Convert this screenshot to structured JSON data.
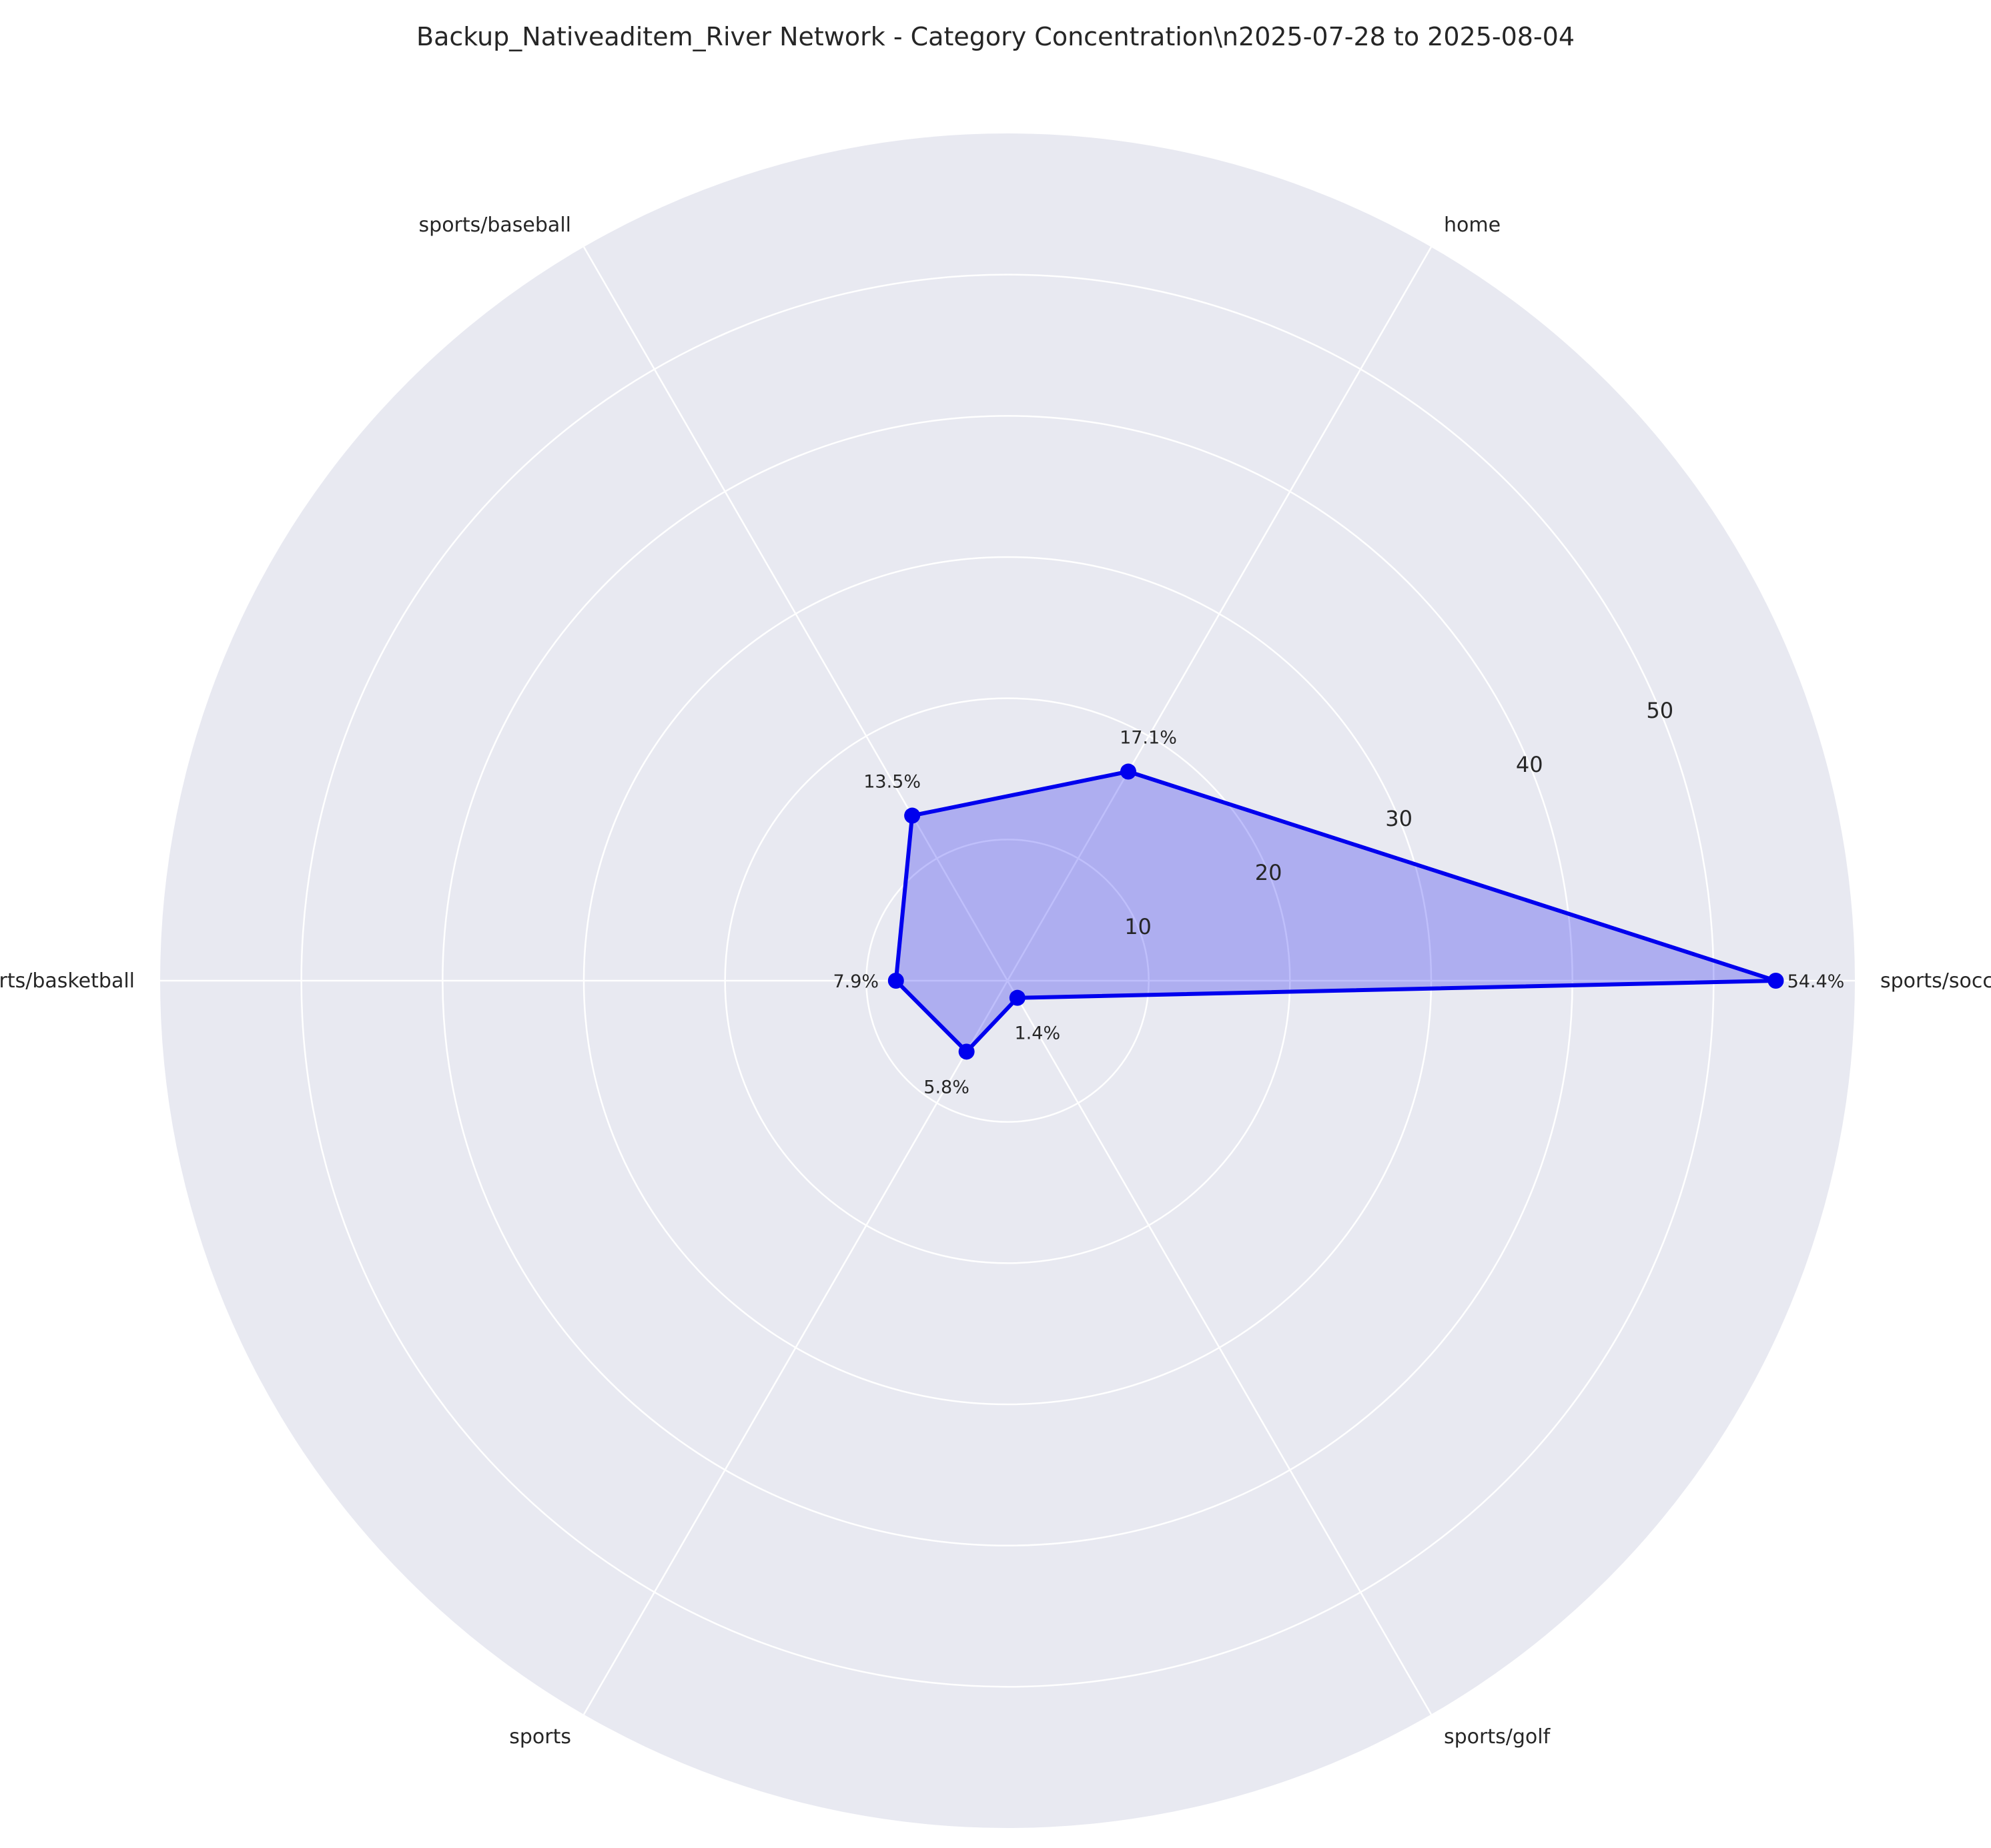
{
  "chart_data": {
    "type": "radar",
    "title": "Backup_Nativeaditem_River Network - Category Concentration\\n2025-07-28 to 2025-08-04",
    "categories": [
      "sports/soccer",
      "home",
      "sports/baseball",
      "sports/basketball",
      "sports",
      "sports/golf"
    ],
    "values": [
      54.4,
      17.1,
      13.5,
      7.9,
      5.8,
      1.4
    ],
    "value_labels": [
      "54.4%",
      "17.1%",
      "13.5%",
      "7.9%",
      "5.8%",
      "1.4%"
    ],
    "radial_ticks": [
      10,
      20,
      30,
      40,
      50
    ],
    "rlim": [
      0,
      60
    ],
    "grid": true,
    "colors": {
      "line": "#0000ee",
      "fill": "#0000ee",
      "plot_background": "#e8e9f1",
      "grid": "#ffffff",
      "text": "#262626"
    }
  }
}
